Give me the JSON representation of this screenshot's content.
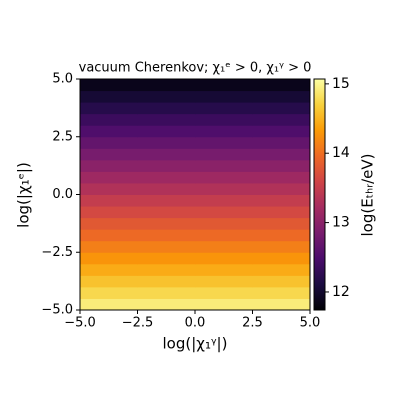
{
  "chart_data": {
    "type": "heatmap",
    "title": "vacuum Cherenkov; χ₁ᵉ > 0,  χ₁ᵞ > 0",
    "x_label": "log(|χ₁ᵞ|)",
    "y_label": "log(|χ₁ᵉ|)",
    "colorbar_label": "log(Eₜₕᵣ/eV)",
    "colormap": "inferno",
    "colormap_colors": [
      "#000004",
      "#1b0c41",
      "#4a0c6b",
      "#781c6d",
      "#a52c60",
      "#cf4446",
      "#ed6925",
      "#fb9b06",
      "#f7d13d",
      "#fcffa4"
    ],
    "x": [
      -3.75,
      -1.25,
      1.25,
      3.75
    ],
    "y": [
      -4.75,
      -4.25,
      -3.75,
      -3.25,
      -2.75,
      -2.25,
      -1.75,
      -1.25,
      -0.75,
      -0.25,
      0.25,
      0.75,
      1.25,
      1.75,
      2.25,
      2.75,
      3.25,
      3.75,
      4.25,
      4.75
    ],
    "z": [
      [
        14.92,
        14.92,
        14.92,
        14.92
      ],
      [
        14.76,
        14.76,
        14.76,
        14.76
      ],
      [
        14.6,
        14.6,
        14.6,
        14.6
      ],
      [
        14.44,
        14.44,
        14.44,
        14.44
      ],
      [
        14.28,
        14.28,
        14.28,
        14.28
      ],
      [
        14.12,
        14.12,
        14.12,
        14.12
      ],
      [
        13.96,
        13.96,
        13.96,
        13.96
      ],
      [
        13.8,
        13.8,
        13.8,
        13.8
      ],
      [
        13.64,
        13.64,
        13.64,
        13.64
      ],
      [
        13.48,
        13.48,
        13.48,
        13.48
      ],
      [
        13.32,
        13.32,
        13.32,
        13.32
      ],
      [
        13.16,
        13.16,
        13.16,
        13.16
      ],
      [
        13.0,
        13.0,
        13.0,
        13.0
      ],
      [
        12.84,
        12.84,
        12.84,
        12.84
      ],
      [
        12.68,
        12.68,
        12.68,
        12.68
      ],
      [
        12.52,
        12.52,
        12.52,
        12.52
      ],
      [
        12.36,
        12.36,
        12.36,
        12.36
      ],
      [
        12.2,
        12.2,
        12.2,
        12.2
      ],
      [
        12.04,
        12.04,
        12.04,
        12.04
      ],
      [
        11.88,
        11.88,
        11.88,
        11.88
      ]
    ],
    "xlim": [
      -5,
      5
    ],
    "ylim": [
      -5,
      5
    ],
    "xticks": [
      {
        "value": -5,
        "label": "−5.0"
      },
      {
        "value": -2.5,
        "label": "−2.5"
      },
      {
        "value": 0,
        "label": "0.0"
      },
      {
        "value": 2.5,
        "label": "2.5"
      },
      {
        "value": 5,
        "label": "5.0"
      }
    ],
    "yticks": [
      {
        "value": -5,
        "label": "−5.0"
      },
      {
        "value": -2.5,
        "label": "−2.5"
      },
      {
        "value": 0,
        "label": "0.0"
      },
      {
        "value": 2.5,
        "label": "2.5"
      },
      {
        "value": 5,
        "label": "5.0"
      }
    ],
    "clim": [
      11.74,
      15.07
    ],
    "cticks": [
      12,
      13,
      14,
      15
    ]
  }
}
